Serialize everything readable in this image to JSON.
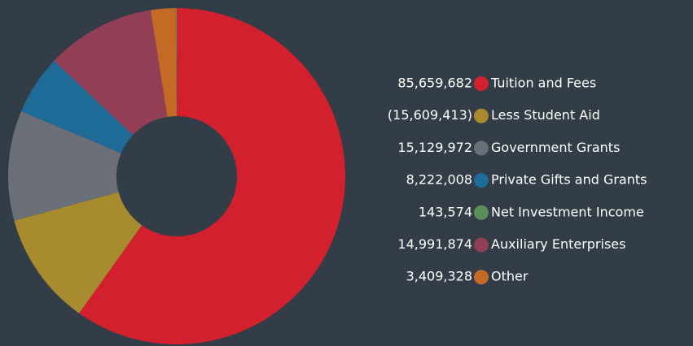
{
  "chart_data": {
    "type": "donut",
    "categories": [
      "Tuition and Fees",
      "Less Student Aid",
      "Government Grants",
      "Private Gifts and Grants",
      "Net Investment Income",
      "Auxiliary Enterprises",
      "Other"
    ],
    "values": [
      85659682,
      -15609413,
      15129972,
      8222008,
      143574,
      14991874,
      3409328
    ],
    "value_labels": [
      "85,659,682",
      "(15,609,413)",
      "15,129,972",
      "8,222,008",
      "143,574",
      "14,991,874",
      "3,409,328"
    ],
    "colors": [
      "#d2202f",
      "#a88b2e",
      "#6b6f78",
      "#1f6b98",
      "#5a8f5a",
      "#923f55",
      "#c46a27"
    ]
  }
}
